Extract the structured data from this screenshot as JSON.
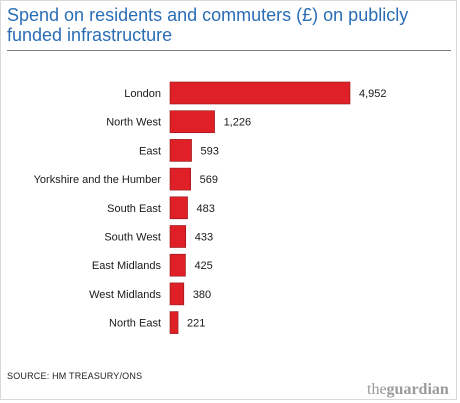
{
  "title": "Spend on residents and commuters (£) on publicly funded infrastructure",
  "source": "SOURCE: HM TREASURY/ONS",
  "logo": "theguardian",
  "colors": {
    "bar": "#e02027",
    "bar_stroke": "#8c1418",
    "title": "#2a6db5"
  },
  "chart_data": {
    "type": "bar",
    "orientation": "horizontal",
    "title": "Spend on residents and commuters (£) on publicly funded infrastructure",
    "categories": [
      "London",
      "North West",
      "East",
      "Yorkshire and the Humber",
      "South East",
      "South West",
      "East Midlands",
      "West Midlands",
      "North East"
    ],
    "values": [
      4952,
      1226,
      593,
      569,
      483,
      433,
      425,
      380,
      221
    ],
    "value_labels": [
      "4,952",
      "1,226",
      "593",
      "569",
      "483",
      "433",
      "425",
      "380",
      "221"
    ],
    "xlabel": "",
    "ylabel": "",
    "grid": false,
    "legend": "none"
  }
}
